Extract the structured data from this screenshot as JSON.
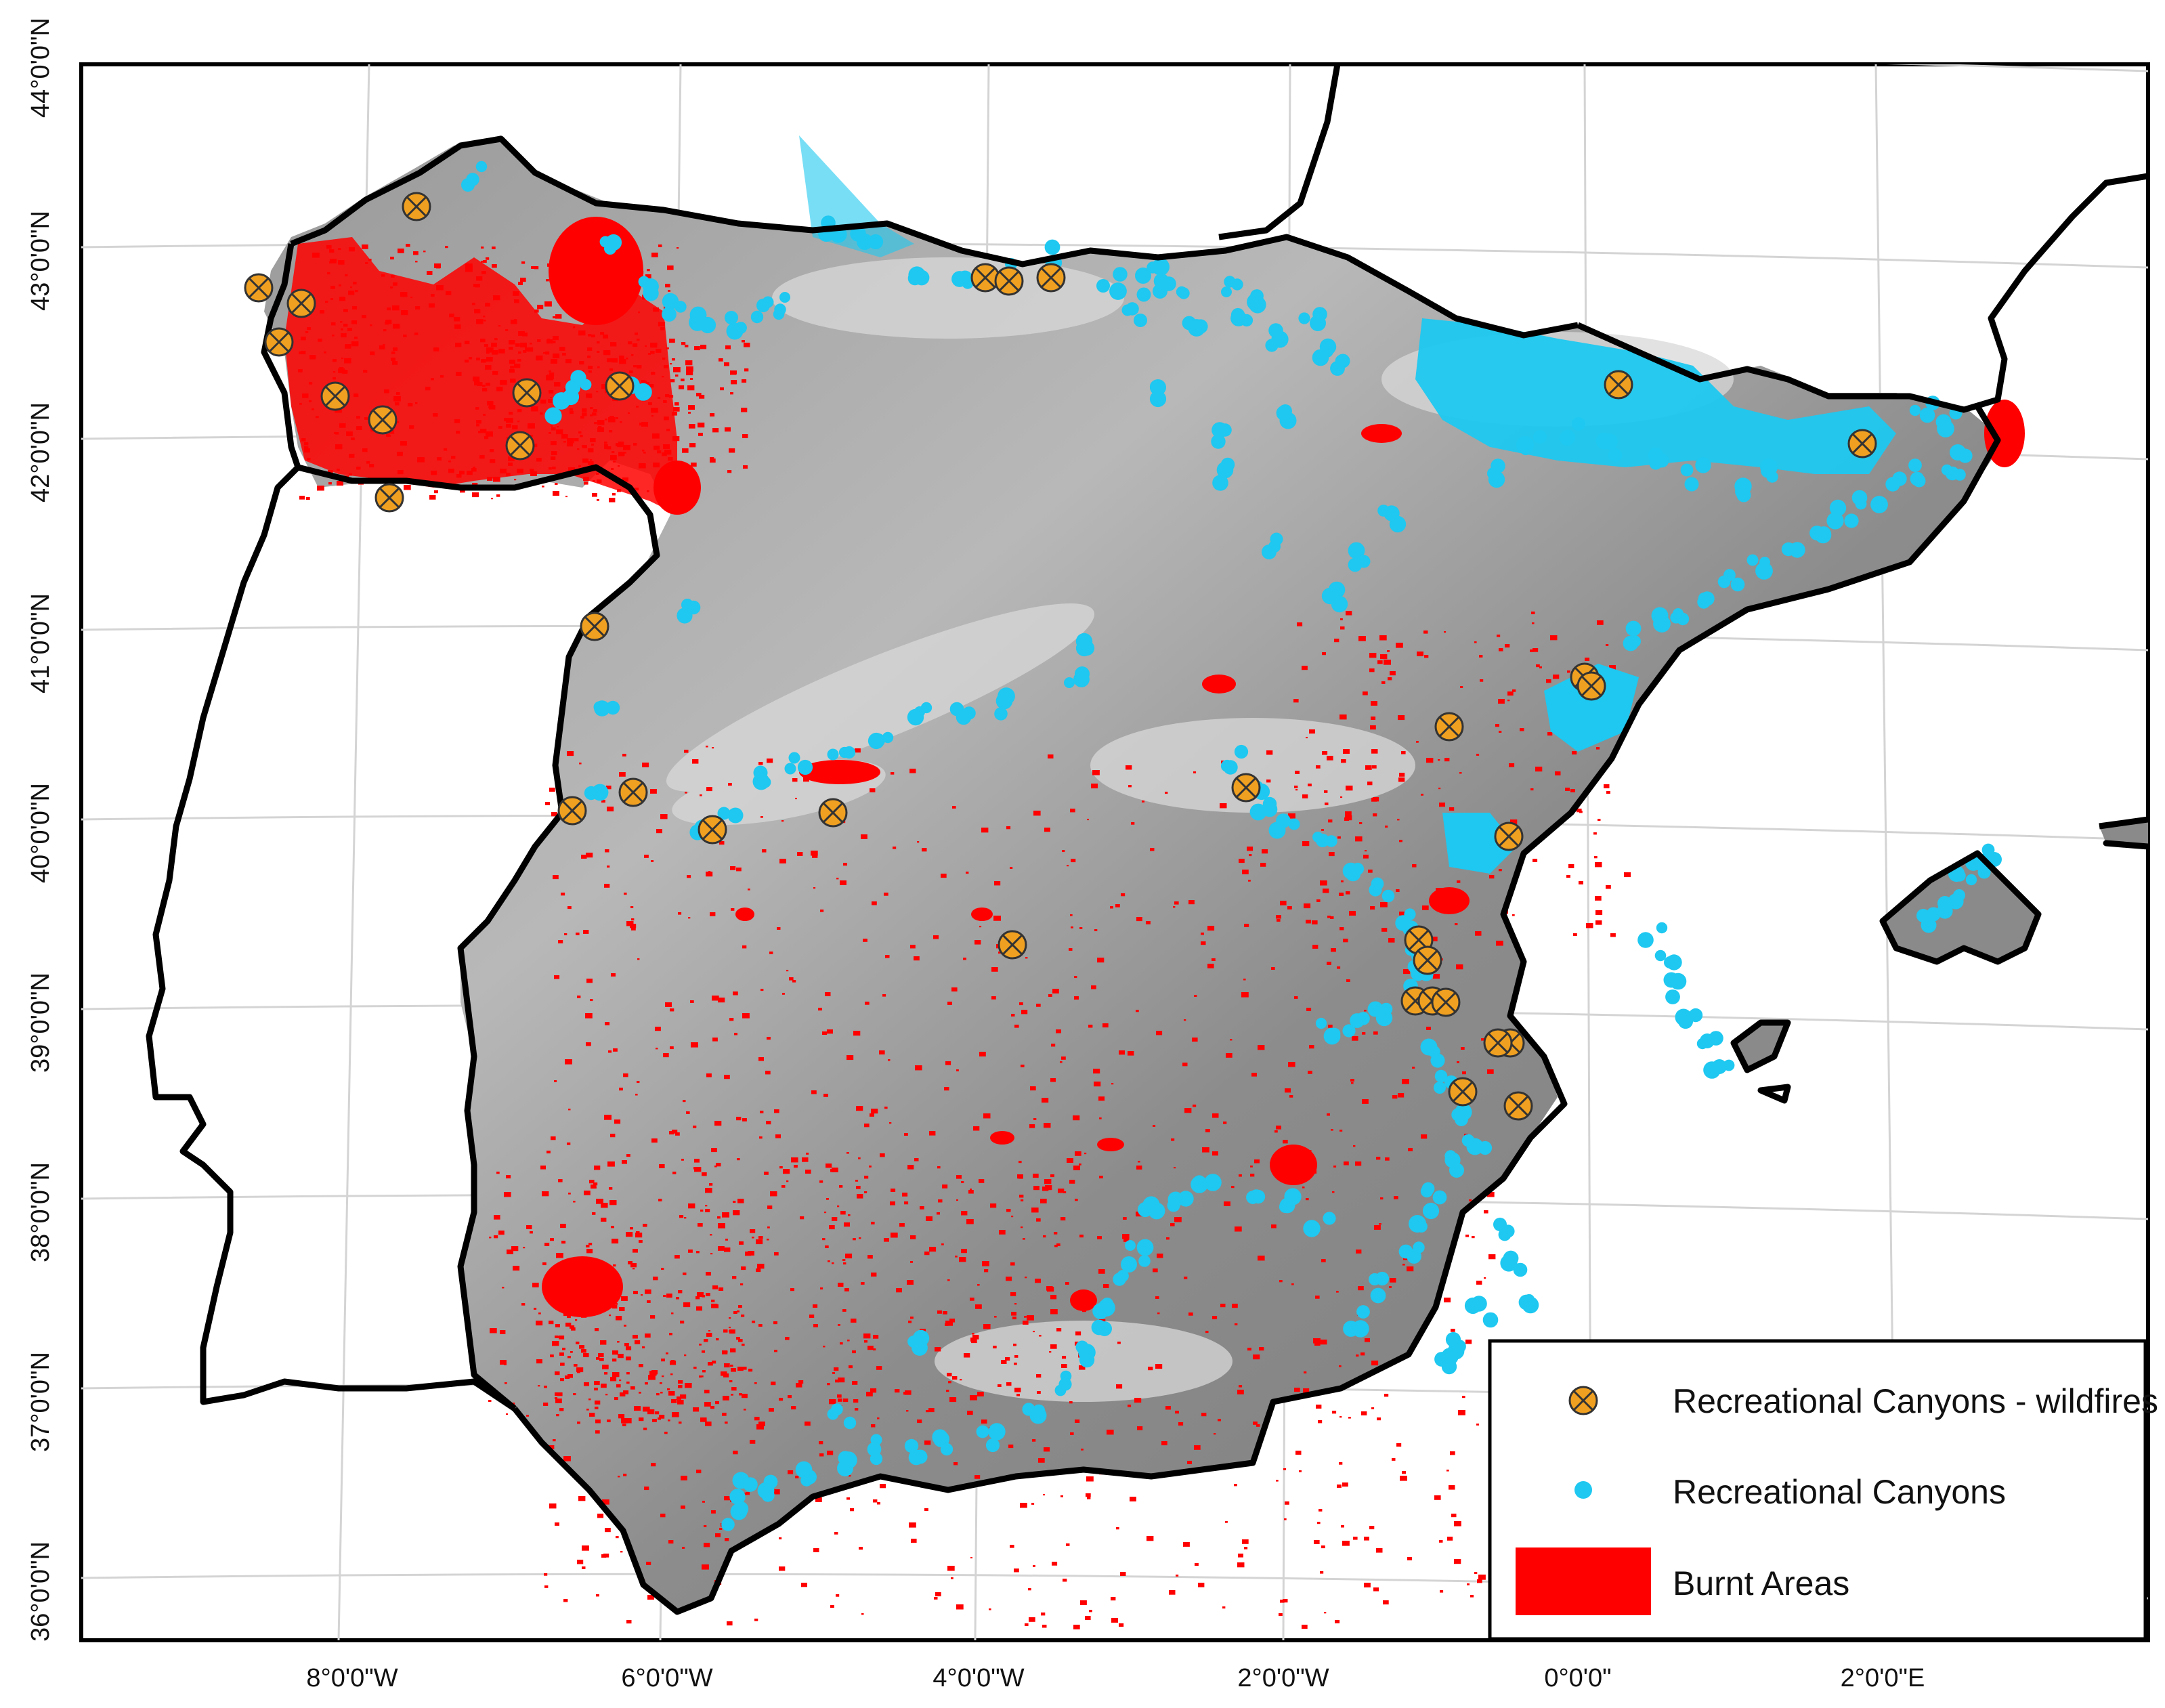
{
  "map": {
    "lat_labels": [
      "44°0'0\"N",
      "43°0'0\"N",
      "42°0'0\"N",
      "41°0'0\"N",
      "40°0'0\"N",
      "39°0'0\"N",
      "38°0'0\"N",
      "37°0'0\"N",
      "36°0'0\"N"
    ],
    "lon_labels": [
      "8°0'0\"W",
      "6°0'0\"W",
      "4°0'0\"W",
      "2°0'0\"W",
      "0°0'0\"",
      "2°0'0\"E"
    ],
    "colors": {
      "burnt": "#ff0000",
      "canyon": "#1ec8f0",
      "wildfire_fill": "#f0a020",
      "coast": "#000000",
      "grid": "#d4d4d4"
    }
  },
  "legend": {
    "items": [
      {
        "label": "Recreational Canyons - wildfires",
        "symbol": "crossed-orange-circle"
      },
      {
        "label": "Recreational Canyons",
        "symbol": "cyan-dot"
      },
      {
        "label": "Burnt Areas",
        "symbol": "red-rectangle"
      }
    ]
  }
}
